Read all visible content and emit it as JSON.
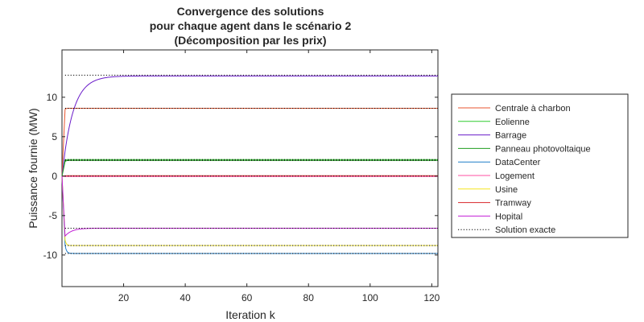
{
  "chart_data": {
    "type": "line",
    "title": [
      "Convergence des solutions",
      "pour chaque agent dans le scénario 2",
      "(Décomposition par les prix)"
    ],
    "xlabel": "Iteration k",
    "ylabel": "Puissance fournie (MW)",
    "xlim": [
      0,
      122
    ],
    "ylim": [
      -14,
      16
    ],
    "xticks": [
      20,
      40,
      60,
      80,
      100,
      120
    ],
    "yticks": [
      -10,
      -5,
      0,
      5,
      10
    ],
    "grid": false,
    "legend_position": "outside-right",
    "series": [
      {
        "name": "Centrale à charbon",
        "color": "#e8552f",
        "start": 0,
        "final": 8.6,
        "tau": 0.25,
        "style": "solid"
      },
      {
        "name": "Eolienne",
        "color": "#2ecc2e",
        "start": 0,
        "final": 2.1,
        "tau": 0.3,
        "style": "solid"
      },
      {
        "name": "Barrage",
        "color": "#6a1bc9",
        "start": 0,
        "final": 12.7,
        "tau": 3.5,
        "style": "solid"
      },
      {
        "name": "Panneau photovoltaique",
        "color": "#1f9e1f",
        "start": 0,
        "final": 2.0,
        "tau": 0.4,
        "style": "solid"
      },
      {
        "name": "DataCenter",
        "color": "#1f7ec9",
        "start": 0,
        "final": -9.8,
        "tau": 0.45,
        "style": "solid"
      },
      {
        "name": "Logement",
        "color": "#ff4fa3",
        "start": 0,
        "final": -0.05,
        "tau": 0.3,
        "style": "solid"
      },
      {
        "name": "Usine",
        "color": "#f5e61f",
        "start": 0,
        "final": -8.8,
        "tau": 0.4,
        "style": "solid"
      },
      {
        "name": "Tramway",
        "color": "#d9252a",
        "start": 0,
        "final": 0.05,
        "tau": 0.3,
        "style": "solid"
      },
      {
        "name": "Hopital",
        "color": "#c21fd6",
        "start": 0,
        "final": -6.6,
        "tau": 2.2,
        "style": "solid",
        "dip": -7.6
      },
      {
        "name": "Solution exacte",
        "color": "#000000",
        "style": "dotted",
        "levels": [
          12.8,
          8.6,
          2.1,
          2.0,
          0,
          -6.6,
          -8.8,
          -9.8
        ]
      }
    ]
  }
}
